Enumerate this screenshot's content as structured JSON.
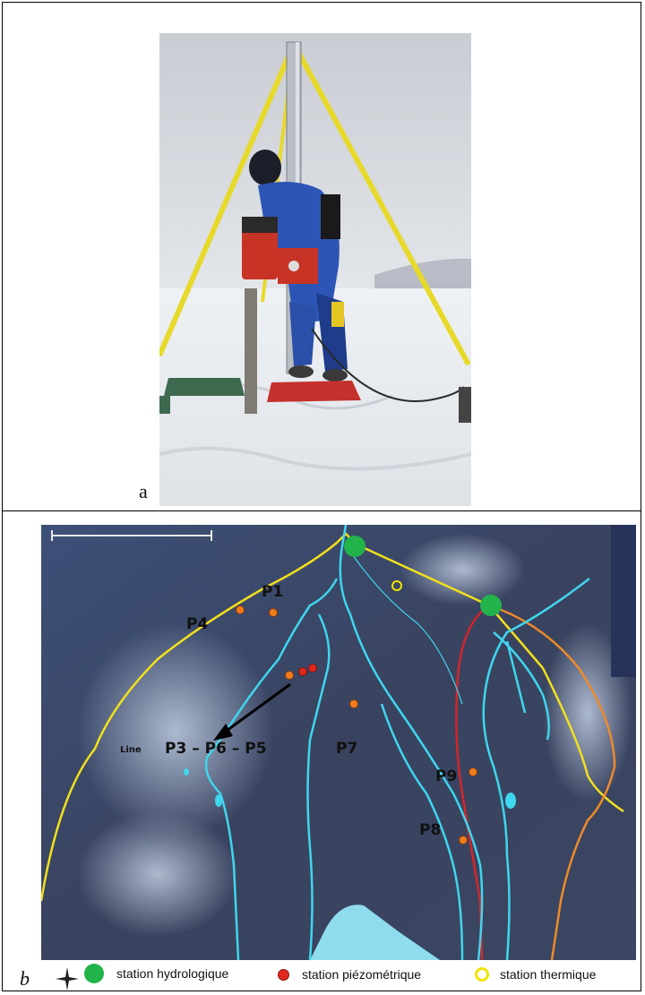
{
  "figure": {
    "panel_a_letter": "a",
    "panel_b_letter": "b"
  },
  "photo": {
    "description_icon": "drilling-rig-photo"
  },
  "map": {
    "labels": {
      "p1": "P1",
      "p4": "P4",
      "p3_p6_p5": "P3 – P6 – P5",
      "line": "Line",
      "p7": "P7",
      "p9": "P9",
      "p8": "P8"
    },
    "colors": {
      "river": "#3fd6ee",
      "boundary": "#f2e01c",
      "red_line": "#d2262a",
      "orange_line": "#ef8a2a",
      "hydro_station": "#22b34a",
      "piezo_station": "#e0281e",
      "thermal_station": "#f0e400"
    }
  },
  "legend": {
    "hydro": "station hydrologique",
    "piezo": "station piézométrique",
    "thermal": "station thermique"
  }
}
